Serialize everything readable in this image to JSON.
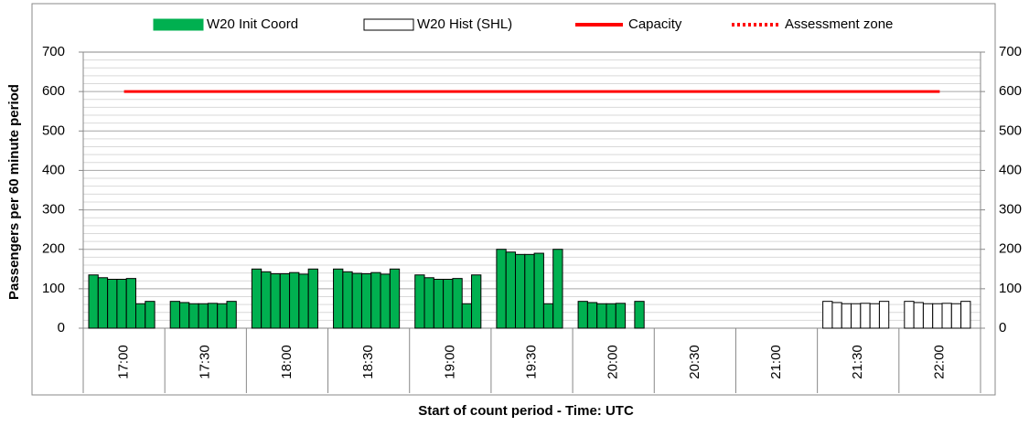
{
  "chart_data": {
    "type": "bar",
    "x_label": "Start of count period - Time: UTC",
    "y_label": "Passengers per 60 minute period",
    "categories": [
      "17:00",
      "17:30",
      "18:00",
      "18:30",
      "19:00",
      "19:30",
      "20:00",
      "20:30",
      "21:00",
      "21:30",
      "22:00"
    ],
    "series": [
      {
        "name": "W20 Init Coord",
        "color": "#00b050",
        "values": [
          [
            135,
            128,
            124,
            124,
            126,
            62,
            68
          ],
          [
            68,
            65,
            62,
            62,
            63,
            62,
            68
          ],
          [
            150,
            143,
            138,
            138,
            141,
            137,
            150
          ],
          [
            150,
            143,
            139,
            138,
            141,
            137,
            150
          ],
          [
            135,
            128,
            124,
            124,
            126,
            62,
            135
          ],
          [
            200,
            193,
            187,
            187,
            190,
            62,
            200
          ],
          [
            68,
            65,
            62,
            62,
            63,
            null,
            68
          ],
          null,
          null,
          null,
          null
        ]
      },
      {
        "name": "W20 Hist (SHL)",
        "color": "#ffffff",
        "values": [
          null,
          null,
          null,
          null,
          null,
          null,
          null,
          null,
          null,
          [
            68,
            65,
            62,
            62,
            63,
            62,
            68
          ],
          [
            68,
            65,
            62,
            62,
            63,
            62,
            68
          ]
        ]
      },
      {
        "name": "Capacity",
        "type": "line",
        "color": "#ff0000",
        "values": [
          600,
          600,
          600,
          600,
          600,
          600,
          600,
          600,
          600,
          600,
          600
        ]
      },
      {
        "name": "Assessment zone",
        "type": "line",
        "dotted": true,
        "color": "#ff0000",
        "values": [
          null,
          null,
          null,
          null,
          null,
          null,
          null,
          null,
          null,
          null,
          null
        ]
      }
    ],
    "ylim": [
      0,
      700
    ],
    "yticks": [
      0,
      100,
      200,
      300,
      400,
      500,
      600,
      700
    ],
    "y2lim": [
      0,
      700
    ],
    "y2ticks": [
      0,
      100,
      200,
      300,
      400,
      500,
      600,
      700
    ],
    "grid": true,
    "legend": "top"
  }
}
